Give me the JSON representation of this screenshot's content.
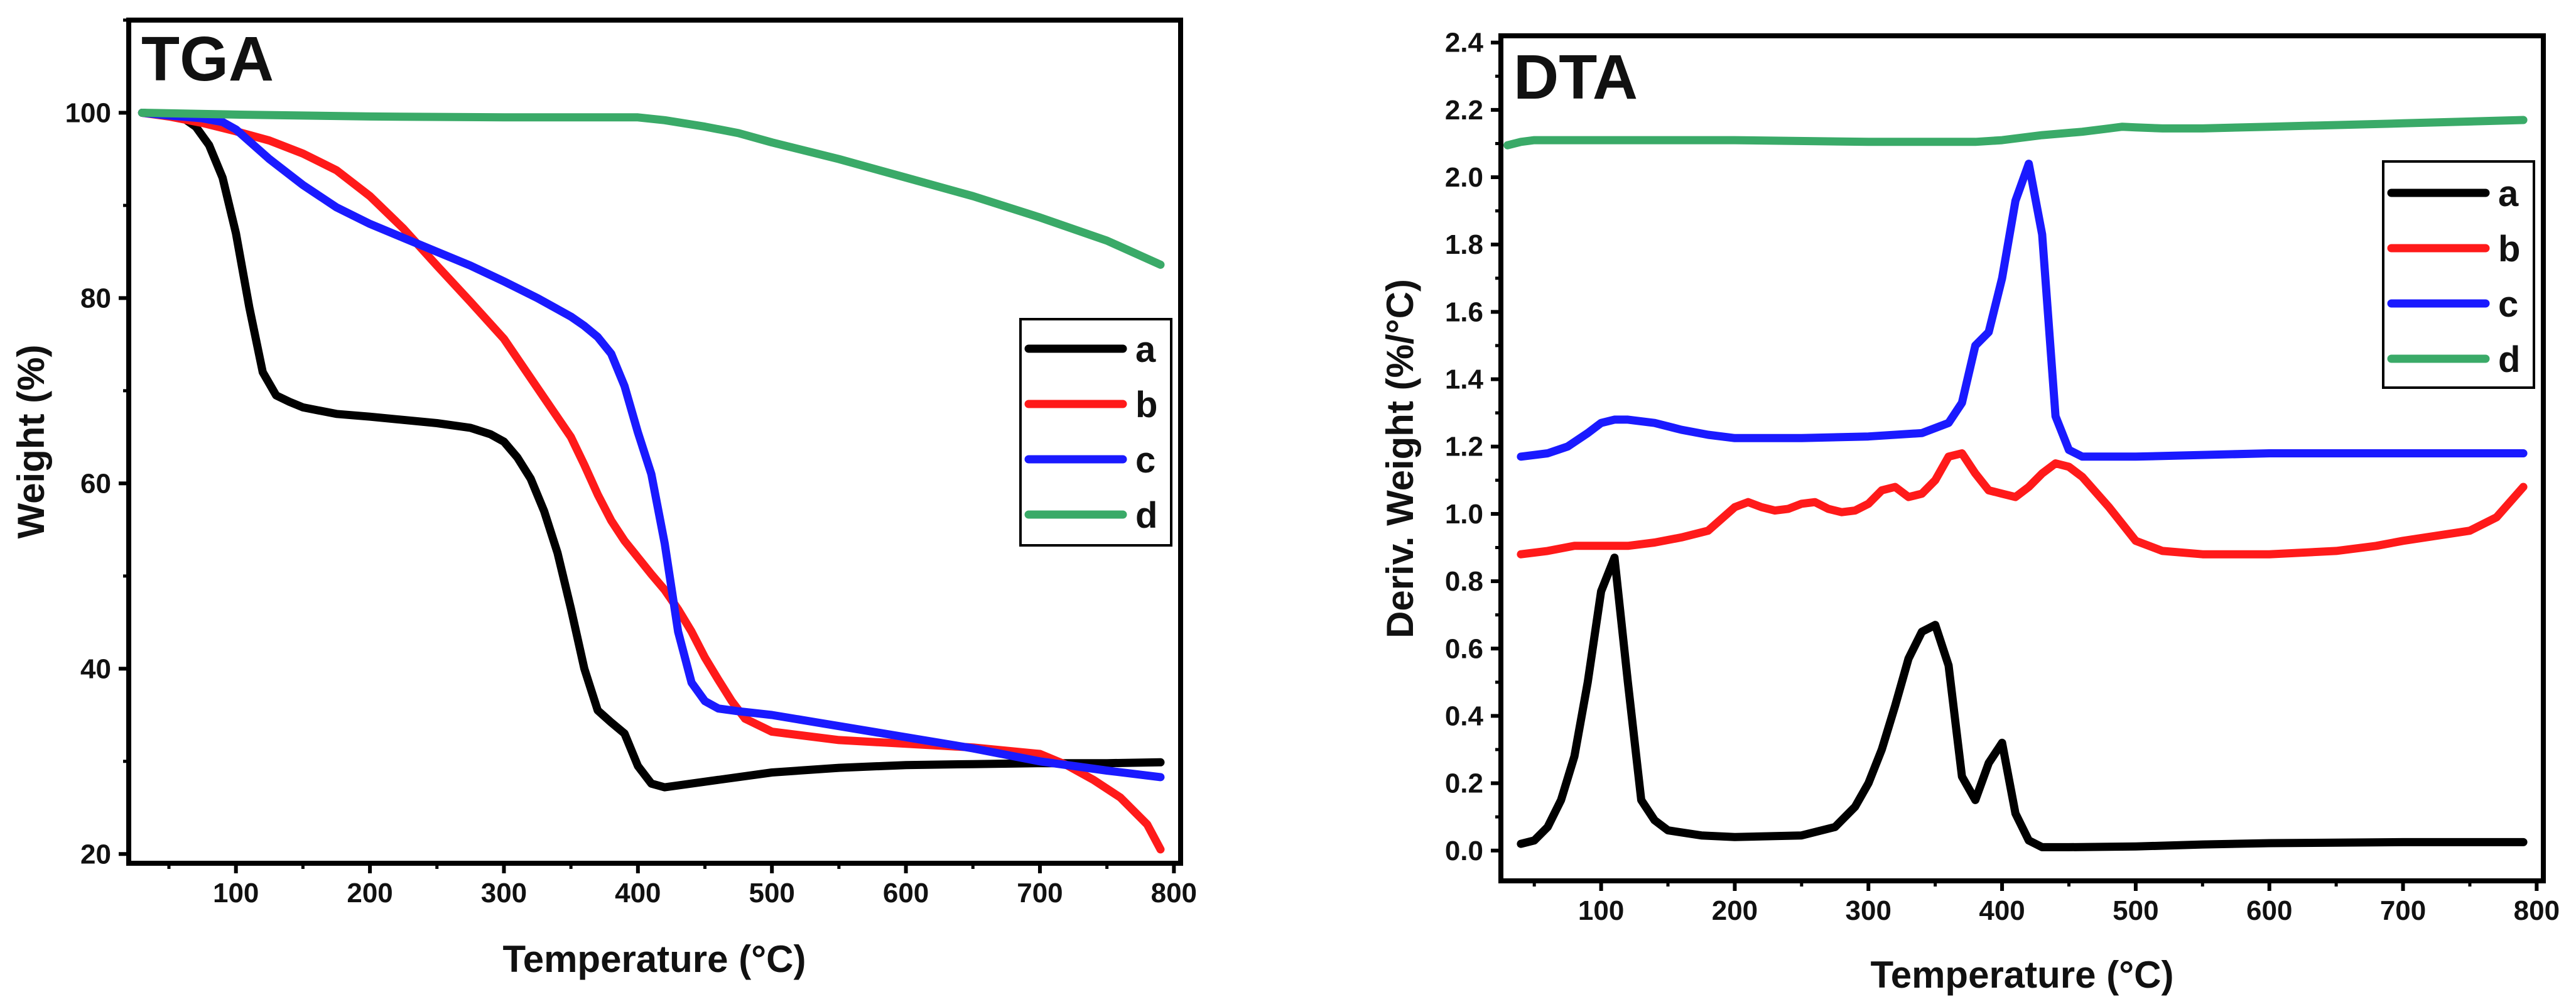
{
  "colors": {
    "a": "#000000",
    "b": "#ff1a1a",
    "c": "#1a1aff",
    "d": "#3aaa68"
  },
  "chart_data": [
    {
      "type": "line",
      "title": "TGA",
      "xlabel": "Temperature (°C)",
      "ylabel": "Weight (%)",
      "xlim": [
        20,
        805
      ],
      "ylim": [
        19,
        110
      ],
      "xticks": [
        100,
        200,
        300,
        400,
        500,
        600,
        700,
        800
      ],
      "xtick_labels": [
        "100",
        "200",
        "300",
        "400",
        "500",
        "600",
        "700",
        "800"
      ],
      "yticks": [
        20,
        40,
        60,
        80,
        100
      ],
      "ytick_labels": [
        "20",
        "40",
        "60",
        "80",
        "100"
      ],
      "legend_position": "right-middle",
      "series": [
        {
          "name": "a",
          "x": [
            30,
            50,
            60,
            70,
            80,
            90,
            100,
            110,
            120,
            130,
            140,
            150,
            175,
            200,
            250,
            275,
            290,
            300,
            310,
            320,
            330,
            340,
            350,
            360,
            370,
            380,
            390,
            400,
            410,
            420,
            450,
            500,
            550,
            600,
            650,
            700,
            750,
            790
          ],
          "y": [
            100,
            99.8,
            99.5,
            98.5,
            96.5,
            93,
            87,
            79,
            72,
            69.5,
            68.8,
            68.2,
            67.5,
            67.2,
            66.5,
            66,
            65.3,
            64.5,
            62.8,
            60.5,
            57,
            52.5,
            46.5,
            40,
            35.5,
            34.2,
            33,
            29.5,
            27.6,
            27.2,
            27.8,
            28.8,
            29.3,
            29.6,
            29.7,
            29.8,
            29.8,
            29.9
          ]
        },
        {
          "name": "b",
          "x": [
            30,
            50,
            75,
            100,
            125,
            150,
            175,
            200,
            225,
            250,
            275,
            300,
            325,
            350,
            360,
            370,
            380,
            390,
            400,
            410,
            420,
            430,
            440,
            450,
            460,
            470,
            480,
            500,
            550,
            600,
            650,
            700,
            720,
            740,
            760,
            780,
            790
          ],
          "y": [
            100,
            99.6,
            98.9,
            98,
            97,
            95.6,
            93.8,
            91,
            87.5,
            83.5,
            79.6,
            75.6,
            70.3,
            65,
            62,
            58.8,
            56,
            53.8,
            52,
            50.2,
            48.5,
            46.4,
            44,
            41.2,
            38.8,
            36.5,
            34.6,
            33.2,
            32.3,
            31.9,
            31.5,
            30.8,
            29.6,
            28,
            26.1,
            23.2,
            20.5
          ]
        },
        {
          "name": "c",
          "x": [
            30,
            50,
            75,
            90,
            100,
            125,
            150,
            175,
            200,
            225,
            250,
            275,
            300,
            325,
            350,
            360,
            370,
            380,
            390,
            400,
            410,
            420,
            430,
            440,
            450,
            460,
            475,
            500,
            550,
            600,
            650,
            700,
            750,
            790
          ],
          "y": [
            100,
            99.7,
            99.4,
            99,
            98.2,
            95,
            92.2,
            89.8,
            88,
            86.5,
            85,
            83.5,
            81.8,
            80,
            78,
            77,
            75.8,
            74,
            70.5,
            65.5,
            61,
            53.5,
            44,
            38.5,
            36.5,
            35.7,
            35.4,
            35,
            33.8,
            32.6,
            31.4,
            30,
            29,
            28.3
          ]
        },
        {
          "name": "d",
          "x": [
            30,
            100,
            200,
            300,
            350,
            400,
            420,
            450,
            475,
            500,
            550,
            600,
            650,
            700,
            750,
            790
          ],
          "y": [
            100,
            99.8,
            99.6,
            99.5,
            99.5,
            99.5,
            99.2,
            98.5,
            97.8,
            96.8,
            95,
            93,
            91,
            88.7,
            86.2,
            83.6
          ]
        }
      ]
    },
    {
      "type": "line",
      "title": "DTA",
      "xlabel": "Temperature (°C)",
      "ylabel": "Deriv. Weight (%/°C)",
      "xlim": [
        25,
        805
      ],
      "ylim": [
        -0.09,
        2.42
      ],
      "xticks": [
        100,
        200,
        300,
        400,
        500,
        600,
        700,
        800
      ],
      "xtick_labels": [
        "100",
        "200",
        "300",
        "400",
        "500",
        "600",
        "700",
        "800"
      ],
      "yticks": [
        0.0,
        0.2,
        0.4,
        0.6,
        0.8,
        1.0,
        1.2,
        1.4,
        1.6,
        1.8,
        2.0,
        2.2,
        2.4
      ],
      "ytick_labels": [
        "0.0",
        "0.2",
        "0.4",
        "0.6",
        "0.8",
        "1.0",
        "1.2",
        "1.4",
        "1.6",
        "1.8",
        "2.0",
        "2.2",
        "2.4"
      ],
      "legend_position": "top-right",
      "series": [
        {
          "name": "a",
          "x": [
            40,
            50,
            60,
            70,
            80,
            90,
            100,
            110,
            120,
            130,
            140,
            150,
            175,
            200,
            250,
            275,
            290,
            300,
            310,
            320,
            330,
            340,
            350,
            360,
            370,
            380,
            390,
            400,
            410,
            420,
            430,
            450,
            500,
            550,
            600,
            700,
            790
          ],
          "y": [
            0.02,
            0.03,
            0.07,
            0.15,
            0.28,
            0.5,
            0.77,
            0.87,
            0.5,
            0.15,
            0.09,
            0.06,
            0.045,
            0.04,
            0.045,
            0.07,
            0.13,
            0.2,
            0.3,
            0.43,
            0.57,
            0.65,
            0.67,
            0.55,
            0.22,
            0.15,
            0.26,
            0.32,
            0.11,
            0.03,
            0.01,
            0.01,
            0.012,
            0.018,
            0.022,
            0.025,
            0.025
          ]
        },
        {
          "name": "b",
          "x": [
            40,
            60,
            80,
            100,
            120,
            140,
            160,
            180,
            200,
            210,
            220,
            230,
            240,
            250,
            260,
            270,
            280,
            290,
            300,
            310,
            320,
            330,
            340,
            350,
            360,
            370,
            380,
            390,
            400,
            410,
            420,
            430,
            440,
            450,
            460,
            480,
            500,
            520,
            550,
            600,
            650,
            680,
            700,
            750,
            770,
            790
          ],
          "y": [
            0.88,
            0.89,
            0.905,
            0.905,
            0.905,
            0.915,
            0.93,
            0.95,
            1.02,
            1.035,
            1.02,
            1.01,
            1.015,
            1.03,
            1.035,
            1.015,
            1.005,
            1.01,
            1.03,
            1.07,
            1.08,
            1.05,
            1.06,
            1.1,
            1.17,
            1.18,
            1.12,
            1.07,
            1.06,
            1.05,
            1.08,
            1.12,
            1.15,
            1.14,
            1.11,
            1.02,
            0.92,
            0.89,
            0.88,
            0.88,
            0.89,
            0.905,
            0.92,
            0.95,
            0.99,
            1.08
          ]
        },
        {
          "name": "c",
          "x": [
            40,
            60,
            75,
            90,
            100,
            110,
            120,
            140,
            160,
            180,
            200,
            250,
            300,
            340,
            360,
            370,
            380,
            390,
            400,
            410,
            420,
            430,
            440,
            450,
            460,
            470,
            500,
            600,
            700,
            790
          ],
          "y": [
            1.17,
            1.18,
            1.2,
            1.24,
            1.27,
            1.28,
            1.28,
            1.27,
            1.25,
            1.235,
            1.225,
            1.225,
            1.23,
            1.24,
            1.27,
            1.33,
            1.5,
            1.54,
            1.7,
            1.93,
            2.04,
            1.83,
            1.29,
            1.19,
            1.17,
            1.17,
            1.17,
            1.18,
            1.18,
            1.18
          ]
        },
        {
          "name": "d",
          "x": [
            30,
            40,
            50,
            100,
            200,
            300,
            350,
            380,
            400,
            430,
            460,
            480,
            490,
            500,
            520,
            550,
            600,
            700,
            790
          ],
          "y": [
            2.095,
            2.105,
            2.11,
            2.11,
            2.11,
            2.105,
            2.105,
            2.105,
            2.11,
            2.125,
            2.135,
            2.145,
            2.15,
            2.148,
            2.145,
            2.145,
            2.15,
            2.16,
            2.17
          ]
        }
      ]
    }
  ]
}
